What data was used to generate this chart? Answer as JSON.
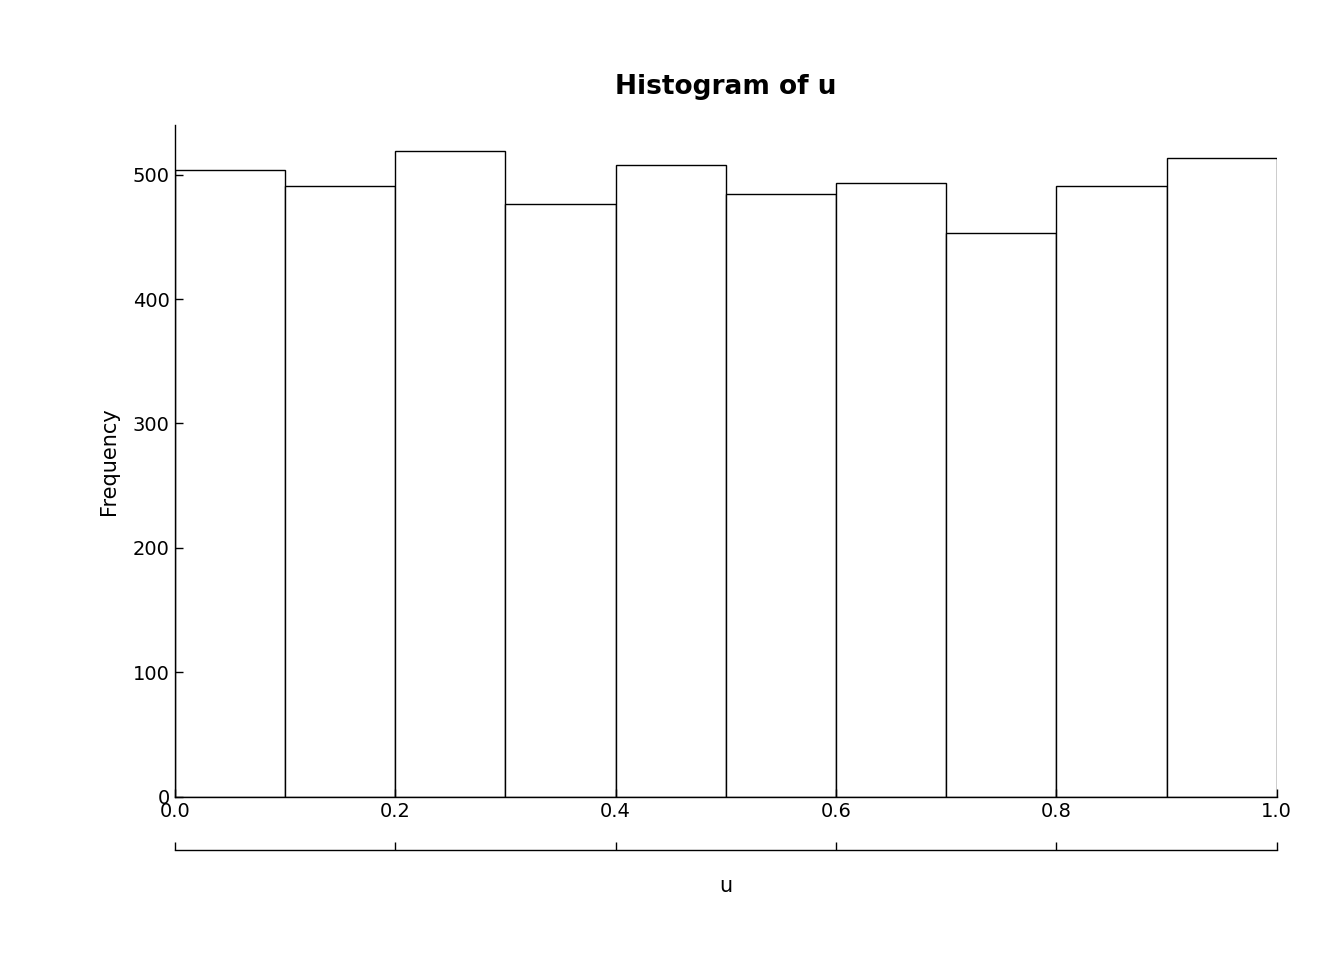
{
  "title": "Histogram of u",
  "xlabel": "u",
  "ylabel": "Frequency",
  "bar_edges": [
    0.0,
    0.1,
    0.2,
    0.3,
    0.4,
    0.5,
    0.6,
    0.7,
    0.8,
    0.9,
    1.0
  ],
  "bar_heights": [
    504,
    491,
    519,
    476,
    508,
    484,
    493,
    453,
    491,
    513
  ],
  "bar_color": "#ffffff",
  "bar_edge_color": "#000000",
  "xlim": [
    0.0,
    1.0
  ],
  "ylim": [
    0,
    540
  ],
  "yticks": [
    0,
    100,
    200,
    300,
    400,
    500
  ],
  "xticks": [
    0.0,
    0.2,
    0.4,
    0.6,
    0.8,
    1.0
  ],
  "background_color": "#ffffff",
  "title_fontsize": 19,
  "title_fontweight": "bold",
  "label_fontsize": 15,
  "tick_fontsize": 14,
  "line_width": 1.0
}
